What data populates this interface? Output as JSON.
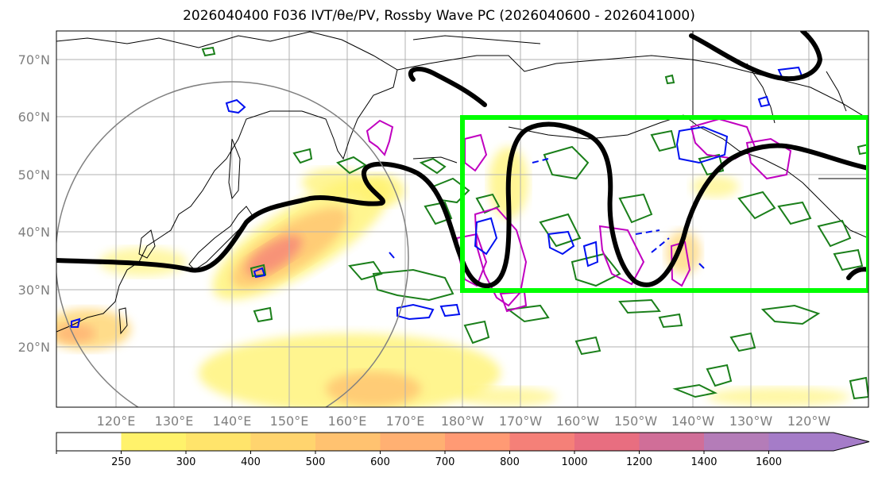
{
  "title": "2026040400 F036 IVT/θe/PV, Rossby Wave PC (2026040600 - 2026041000)",
  "latitude_labels": [
    "70°N",
    "60°N",
    "50°N",
    "40°N",
    "30°N",
    "20°N"
  ],
  "longitude_labels": [
    "120°E",
    "130°E",
    "140°E",
    "150°E",
    "160°E",
    "170°E",
    "180°W",
    "170°W",
    "160°W",
    "150°W",
    "140°W",
    "130°W",
    "120°W"
  ],
  "colorbar": {
    "levels": [
      "250",
      "300",
      "400",
      "500",
      "600",
      "700",
      "800",
      "1000",
      "1200",
      "1400",
      "1600"
    ],
    "colors": [
      "#fff26b",
      "#ffe46b",
      "#ffd46e",
      "#ffc270",
      "#ffb072",
      "#ff9a74",
      "#f58078",
      "#e86e80",
      "#d06e98",
      "#b47cb8",
      "#a57cc8"
    ]
  },
  "colors": {
    "highlight_box": "#00ff00",
    "green_contours": "#1a7f1a",
    "magenta_contours": "#c000c0",
    "blue_contours": "#0010f0",
    "wave_line": "#000000",
    "circle": "#808080"
  }
}
